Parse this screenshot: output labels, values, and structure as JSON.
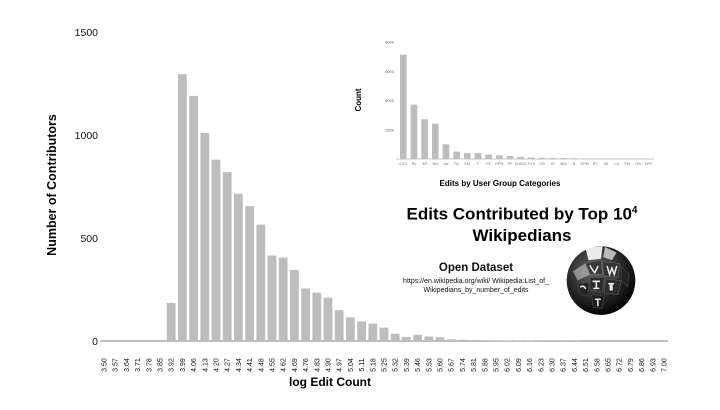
{
  "chart_data": [
    {
      "type": "bar",
      "xlabel": "log Edit Count",
      "ylabel": "Number of Contributors",
      "ylim": [
        0,
        1500
      ],
      "yticks": [
        "0",
        "500",
        "1000",
        "1500"
      ],
      "grid": false,
      "categories": [
        "3.50",
        "3.57",
        "3.64",
        "3.71",
        "3.78",
        "3.85",
        "3.92",
        "3.99",
        "4.06",
        "4.13",
        "4.20",
        "4.27",
        "4.34",
        "4.41",
        "4.48",
        "4.55",
        "4.62",
        "4.69",
        "4.76",
        "4.83",
        "4.90",
        "4.97",
        "5.04",
        "5.11",
        "5.18",
        "5.25",
        "5.32",
        "5.39",
        "5.46",
        "5.53",
        "5.60",
        "5.67",
        "5.74",
        "5.81",
        "5.88",
        "5.95",
        "6.02",
        "6.09",
        "6.16",
        "6.23",
        "6.30",
        "6.37",
        "6.44",
        "6.51",
        "6.58",
        "6.65",
        "6.72",
        "6.79",
        "6.86",
        "6.93",
        "7.00"
      ],
      "values": [
        0,
        0,
        0,
        0,
        0,
        0,
        185,
        1295,
        1190,
        1010,
        880,
        820,
        715,
        655,
        565,
        415,
        405,
        345,
        255,
        235,
        210,
        150,
        115,
        95,
        85,
        65,
        35,
        20,
        30,
        22,
        18,
        8,
        6,
        5,
        4,
        3,
        3,
        2,
        2,
        1,
        1,
        1,
        1,
        0,
        0,
        0,
        0,
        0,
        0,
        0,
        0
      ]
    },
    {
      "type": "bar",
      "xlabel": "Edits by User Group Categories",
      "ylabel": "Count",
      "yticks": [
        "2000",
        "4000",
        "6000",
        "8000"
      ],
      "ylim": [
        0,
        8500
      ],
      "categories": [
        "EXC",
        "Ro",
        "AP",
        "Rol",
        "Ad",
        "Re",
        "EM",
        "F",
        "FE",
        "EPM",
        "PP",
        "EMOG",
        "SYS",
        "CR",
        "IO",
        "MM",
        "B",
        "EPM",
        "PC",
        "IM",
        "Cu",
        "PM",
        "OS",
        "EPP"
      ],
      "values": [
        7100,
        3700,
        2700,
        2400,
        1000,
        500,
        400,
        400,
        300,
        250,
        200,
        150,
        100,
        80,
        70,
        60,
        50,
        40,
        30,
        30,
        25,
        20,
        15,
        10
      ]
    }
  ],
  "title_main": "Edits Contributed by Top 10",
  "title_exp": "4",
  "title_line2": "Wikipedians",
  "dataset": {
    "heading": "Open Dataset",
    "url": "https://en.wikipedia.org/wiki/ Wikipedia:List_of_Wikipedians_by_number_of_edits"
  },
  "colors": {
    "bar": "#bdbdbd",
    "axis": "#555555",
    "text": "#111111"
  },
  "logo_icon": "wikipedia-globe-icon"
}
